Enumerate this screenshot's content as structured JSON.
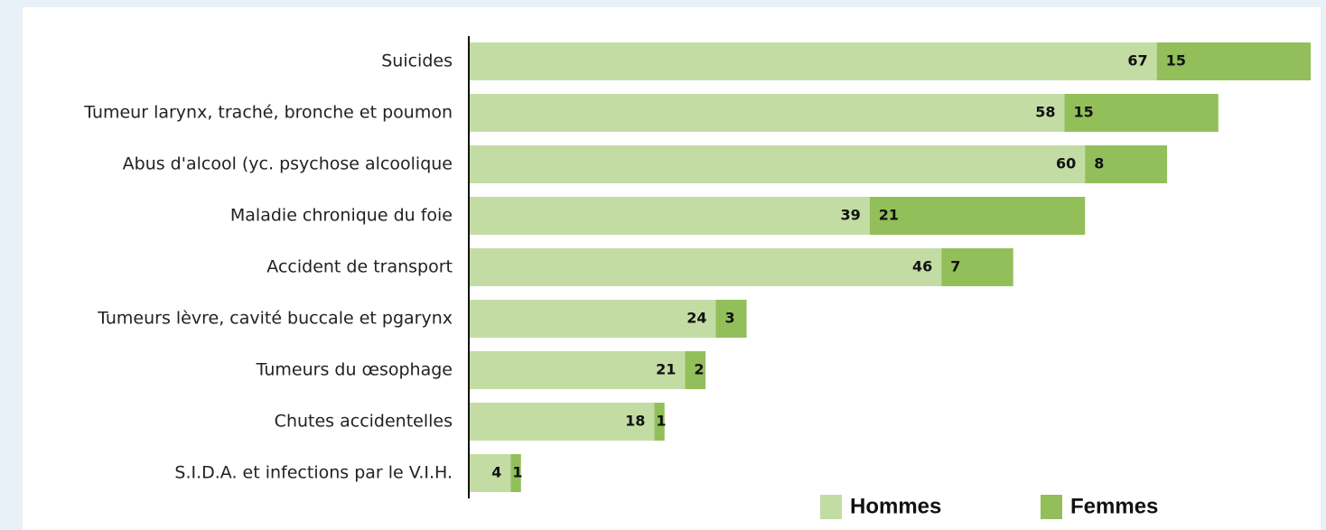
{
  "chart_data": {
    "type": "stacked_barh",
    "categories": [
      "Suicides",
      "Tumeur larynx, traché, bronche et poumon",
      "Abus d'alcool (yc. psychose alcoolique",
      "Maladie chronique du foie",
      "Accident de transport",
      "Tumeurs lèvre, cavité buccale et pgarynx",
      "Tumeurs du œsophage",
      "Chutes accidentelles",
      "S.I.D.A. et infections par le V.I.H."
    ],
    "series": [
      {
        "name": "Hommes",
        "color": "#c3dca4",
        "values": [
          67,
          58,
          60,
          39,
          46,
          24,
          21,
          18,
          4
        ]
      },
      {
        "name": "Femmes",
        "color": "#92bf5a",
        "values": [
          15,
          15,
          8,
          21,
          7,
          3,
          2,
          1,
          1
        ]
      }
    ],
    "xlim": [
      0,
      82
    ],
    "legend": "bottom-right"
  }
}
